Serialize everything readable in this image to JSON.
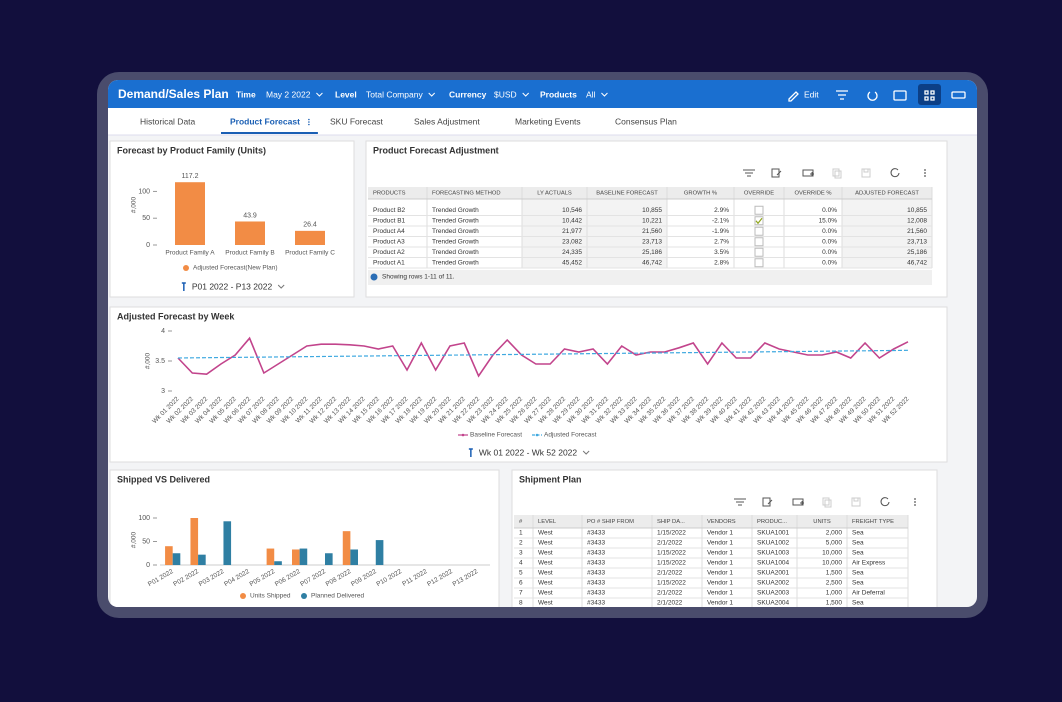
{
  "header": {
    "title": "Demand/Sales Plan",
    "filters": [
      {
        "label": "Time",
        "value": "May 2 2022"
      },
      {
        "label": "Level",
        "value": "Total Company"
      },
      {
        "label": "Currency",
        "value": "$USD"
      },
      {
        "label": "Products",
        "value": "All"
      }
    ],
    "edit": "Edit"
  },
  "tabs": {
    "items": [
      "Historical Data",
      "Product Forecast",
      "SKU Forecast",
      "Sales Adjustment",
      "Marketing Events",
      "Consensus Plan"
    ],
    "active": 1
  },
  "chart_data": [
    {
      "type": "bar",
      "title": "Forecast by Product Family (Units)",
      "y_label": "#,000",
      "categories": [
        "Product Family A",
        "Product Family B",
        "Product Family C"
      ],
      "series": [
        {
          "name": "Adjusted Forecast(New Plan)",
          "color": "#f28c45",
          "values": [
            117.2,
            43.9,
            26.4
          ]
        }
      ],
      "data_labels": true,
      "ylim": [
        0,
        140
      ],
      "yticks": [
        0,
        50,
        100
      ],
      "footer": "P01 2022 - P13 2022"
    },
    {
      "type": "line",
      "title": "Adjusted Forecast by Week",
      "y_label": "#,000",
      "categories": [
        "Wk 01 2022",
        "Wk 02 2022",
        "Wk 03 2022",
        "Wk 04 2022",
        "Wk 05 2022",
        "Wk 06 2022",
        "Wk 07 2022",
        "Wk 08 2022",
        "Wk 09 2022",
        "Wk 10 2022",
        "Wk 11 2022",
        "Wk 12 2022",
        "Wk 13 2022",
        "Wk 14 2022",
        "Wk 15 2022",
        "Wk 16 2022",
        "Wk 17 2022",
        "Wk 18 2022",
        "Wk 19 2022",
        "Wk 20 2022",
        "Wk 21 2022",
        "Wk 22 2022",
        "Wk 23 2022",
        "Wk 24 2022",
        "Wk 25 2022",
        "Wk 26 2022",
        "Wk 27 2022",
        "Wk 28 2022",
        "Wk 29 2022",
        "Wk 30 2022",
        "Wk 31 2022",
        "Wk 32 2022",
        "Wk 33 2022",
        "Wk 34 2022",
        "Wk 35 2022",
        "Wk 36 2022",
        "Wk 37 2022",
        "Wk 38 2022",
        "Wk 39 2022",
        "Wk 40 2022",
        "Wk 41 2022",
        "Wk 42 2022",
        "Wk 43 2022",
        "Wk 44 2022",
        "Wk 45 2022",
        "Wk 46 2022",
        "Wk 47 2022",
        "Wk 48 2022",
        "Wk 49 2022",
        "Wk 50 2022",
        "Wk 51 2022",
        "Wk 52 2022"
      ],
      "series": [
        {
          "name": "Baseline Forecast",
          "color": "#c2448c",
          "dashed": false,
          "values": [
            3.55,
            3.3,
            3.28,
            3.45,
            3.6,
            3.88,
            3.3,
            3.45,
            3.6,
            3.75,
            3.78,
            3.78,
            3.77,
            3.75,
            3.7,
            3.75,
            3.35,
            3.8,
            3.35,
            3.75,
            3.8,
            3.25,
            3.6,
            3.85,
            3.6,
            3.45,
            3.45,
            3.7,
            3.65,
            3.7,
            3.45,
            3.75,
            3.6,
            3.65,
            3.65,
            3.72,
            3.8,
            3.45,
            3.8,
            3.55,
            3.55,
            3.8,
            3.7,
            3.65,
            3.6,
            3.6,
            3.65,
            3.55,
            3.8,
            3.55,
            3.7,
            3.82
          ]
        },
        {
          "name": "Adjusted Forecast",
          "color": "#3fa9e0",
          "dashed": true,
          "values": [
            3.55,
            3.553,
            3.555,
            3.558,
            3.56,
            3.563,
            3.565,
            3.568,
            3.57,
            3.573,
            3.575,
            3.578,
            3.58,
            3.583,
            3.585,
            3.588,
            3.59,
            3.593,
            3.595,
            3.598,
            3.6,
            3.603,
            3.605,
            3.608,
            3.61,
            3.613,
            3.615,
            3.618,
            3.62,
            3.623,
            3.625,
            3.628,
            3.63,
            3.633,
            3.635,
            3.638,
            3.64,
            3.643,
            3.645,
            3.648,
            3.65,
            3.653,
            3.655,
            3.658,
            3.66,
            3.663,
            3.665,
            3.668,
            3.67,
            3.673,
            3.675,
            3.678
          ]
        }
      ],
      "ylim": [
        3,
        4
      ],
      "yticks": [
        3,
        3.5,
        4
      ],
      "footer": "Wk 01 2022 - Wk 52 2022"
    },
    {
      "type": "bar",
      "title": "Shipped VS Delivered",
      "y_label": "#,000",
      "categories": [
        "P01 2022",
        "P02 2022",
        "P03 2022",
        "P04 2022",
        "P05 2022",
        "P06 2022",
        "P07 2022",
        "P08 2022",
        "P09 2022",
        "P10 2022",
        "P11 2022",
        "P12 2022",
        "P13 2022"
      ],
      "series": [
        {
          "name": "Units Shipped",
          "color": "#f28c45",
          "values": [
            40,
            100,
            0,
            0,
            35,
            33,
            0,
            72,
            0,
            0,
            0,
            0,
            0
          ]
        },
        {
          "name": "Planned Delivered",
          "color": "#2f7fa3",
          "values": [
            25,
            22,
            93,
            0,
            8,
            35,
            25,
            33,
            53,
            0,
            0,
            0,
            0
          ]
        }
      ],
      "ylim": [
        0,
        110
      ],
      "yticks": [
        0,
        50,
        100
      ]
    }
  ],
  "tables": [
    {
      "title": "Product Forecast Adjustment",
      "columns": [
        "PRODUCTS",
        "FORECASTING METHOD",
        "LY ACTUALS",
        "BASELINE FORECAST",
        "GROWTH %",
        "OVERRIDE",
        "OVERRIDE %",
        "ADJUSTED FORECAST"
      ],
      "rows": [
        [
          "Product B2",
          "Trended Growth",
          "10,546",
          "10,855",
          "2.9%",
          false,
          "0.0%",
          "10,855"
        ],
        [
          "Product B1",
          "Trended Growth",
          "10,442",
          "10,221",
          "-2.1%",
          true,
          "15.0%",
          "12,008"
        ],
        [
          "Product A4",
          "Trended Growth",
          "21,977",
          "21,560",
          "-1.9%",
          false,
          "0.0%",
          "21,560"
        ],
        [
          "Product A3",
          "Trended Growth",
          "23,082",
          "23,713",
          "2.7%",
          false,
          "0.0%",
          "23,713"
        ],
        [
          "Product A2",
          "Trended Growth",
          "24,335",
          "25,186",
          "3.5%",
          false,
          "0.0%",
          "25,186"
        ],
        [
          "Product A1",
          "Trended Growth",
          "45,452",
          "46,742",
          "2.8%",
          false,
          "0.0%",
          "46,742"
        ]
      ],
      "footer": "Showing rows 1-11 of 11."
    },
    {
      "title": "Shipment Plan",
      "columns": [
        "#",
        "LEVEL",
        "PO # SHIP FROM",
        "SHIP DA...",
        "VENDORS",
        "PRODUC...",
        "UNITS",
        "FREIGHT TYPE"
      ],
      "rows": [
        [
          "1",
          "West",
          "#3433",
          "1/15/2022",
          "Vendor 1",
          "SKUA1001",
          "2,000",
          "Sea"
        ],
        [
          "2",
          "West",
          "#3433",
          "2/1/2022",
          "Vendor 1",
          "SKUA1002",
          "5,000",
          "Sea"
        ],
        [
          "3",
          "West",
          "#3433",
          "1/15/2022",
          "Vendor 1",
          "SKUA1003",
          "10,000",
          "Sea"
        ],
        [
          "4",
          "West",
          "#3433",
          "1/15/2022",
          "Vendor 1",
          "SKUA1004",
          "10,000",
          "Air Express"
        ],
        [
          "5",
          "West",
          "#3433",
          "2/1/2022",
          "Vendor 1",
          "SKUA2001",
          "1,500",
          "Sea"
        ],
        [
          "6",
          "West",
          "#3433",
          "1/15/2022",
          "Vendor 1",
          "SKUA2002",
          "2,500",
          "Sea"
        ],
        [
          "7",
          "West",
          "#3433",
          "2/1/2022",
          "Vendor 1",
          "SKUA2003",
          "1,000",
          "Air Deferral"
        ],
        [
          "8",
          "West",
          "#3433",
          "2/1/2022",
          "Vendor 1",
          "SKUA2004",
          "1,500",
          "Sea"
        ]
      ]
    }
  ]
}
